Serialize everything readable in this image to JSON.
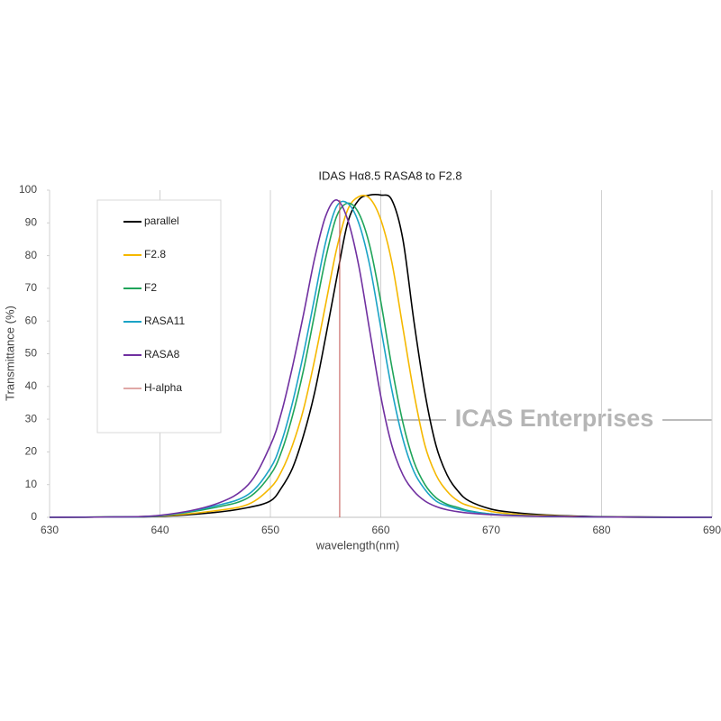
{
  "chart_data": {
    "type": "line",
    "title": "IDAS   Hα8.5   RASA8  to F2.8",
    "x_label": "wavelength(nm)",
    "y_label": "Transmittance  (%)",
    "watermark": "ICAS Enterprises",
    "x": [
      630,
      635,
      640,
      645,
      648,
      650,
      651,
      652,
      653,
      654,
      655,
      656,
      657,
      658,
      659,
      660,
      661,
      662,
      663,
      664,
      665,
      666,
      667,
      668,
      670,
      672,
      675,
      680,
      685,
      690
    ],
    "series": [
      {
        "name": "parallel",
        "color": "#000000",
        "values": [
          0,
          0.1,
          0.3,
          1.5,
          3,
          5,
          9,
          15,
          25,
          38,
          55,
          73,
          90,
          97,
          98.5,
          98.5,
          97,
          85,
          60,
          38,
          22,
          13,
          8,
          5,
          2.5,
          1.5,
          0.7,
          0.2,
          0.1,
          0
        ]
      },
      {
        "name": "F2.8",
        "color": "#f5b800",
        "values": [
          0,
          0.1,
          0.4,
          2,
          4,
          9,
          14,
          22,
          33,
          48,
          65,
          82,
          94,
          98,
          97.5,
          91,
          78,
          58,
          38,
          22,
          13,
          8,
          5,
          3.5,
          1.8,
          1,
          0.5,
          0.1,
          0,
          0
        ]
      },
      {
        "name": "F2",
        "color": "#1fa45a",
        "values": [
          0,
          0.1,
          0.5,
          3,
          6,
          13,
          20,
          31,
          45,
          62,
          79,
          92,
          96,
          93,
          83,
          66,
          46,
          29,
          17,
          10,
          6,
          4,
          3,
          2,
          1,
          0.6,
          0.3,
          0.1,
          0,
          0
        ]
      },
      {
        "name": "RASA11",
        "color": "#1ba3c6",
        "values": [
          0,
          0.1,
          0.5,
          3.5,
          7,
          15,
          23,
          35,
          50,
          67,
          84,
          95,
          96,
          90,
          77,
          58,
          39,
          24,
          14,
          8.5,
          5,
          3.5,
          2.5,
          1.8,
          1,
          0.6,
          0.3,
          0.1,
          0,
          0
        ]
      },
      {
        "name": "RASA8",
        "color": "#7030a0",
        "values": [
          0,
          0.1,
          0.6,
          4,
          10,
          22,
          32,
          46,
          62,
          79,
          92,
          97,
          91,
          77,
          57,
          37,
          22,
          13,
          8,
          5,
          3.3,
          2.3,
          1.7,
          1.3,
          0.8,
          0.5,
          0.3,
          0.1,
          0,
          0
        ]
      }
    ],
    "vlines": [
      {
        "name": "H-alpha",
        "color": "#c0504d",
        "x": 656.28
      }
    ],
    "xlim": [
      630,
      690
    ],
    "xticks": [
      630,
      640,
      650,
      660,
      670,
      680,
      690
    ],
    "ylim": [
      0,
      100
    ],
    "yticks": [
      0,
      10,
      20,
      30,
      40,
      50,
      60,
      70,
      80,
      90,
      100
    ],
    "grid": "x"
  }
}
